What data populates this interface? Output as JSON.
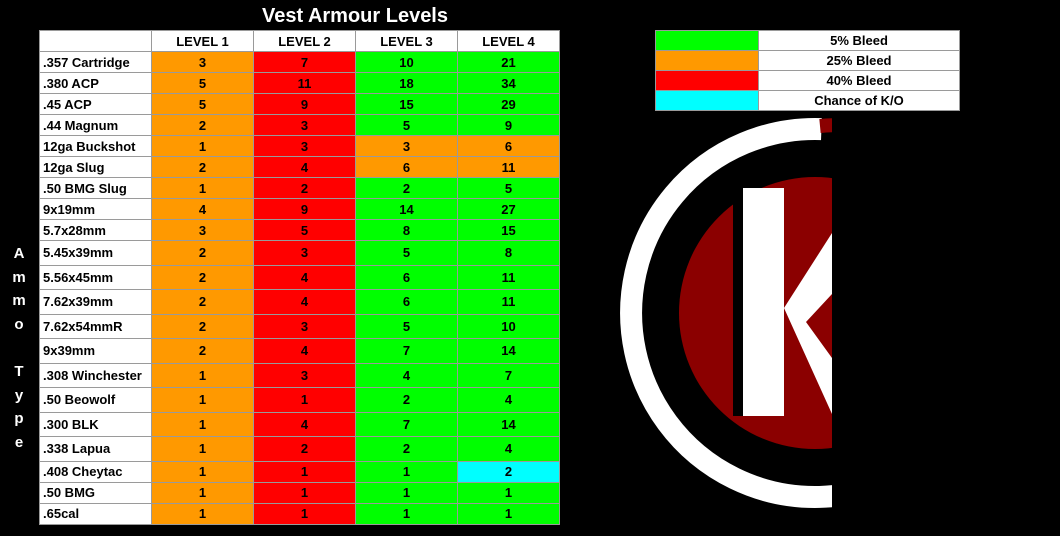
{
  "title": "Vest Armour Levels",
  "side_label": [
    "A",
    "m",
    "m",
    "o",
    "",
    "T",
    "y",
    "p",
    "e"
  ],
  "headers": [
    "",
    "LEVEL 1",
    "LEVEL 2",
    "LEVEL 3",
    "LEVEL 4"
  ],
  "colors": {
    "bleed5": "#00ff00",
    "bleed25": "#ff9900",
    "bleed40": "#ff0000",
    "ko": "#00ffff"
  },
  "legend": [
    {
      "label": "5% Bleed",
      "color": "bleed5"
    },
    {
      "label": "25% Bleed",
      "color": "bleed25"
    },
    {
      "label": "40% Bleed",
      "color": "bleed40"
    },
    {
      "label": "Chance of K/O",
      "color": "ko"
    }
  ],
  "rows": [
    {
      "ammo": ".357 Cartridge",
      "values": [
        "3",
        "7",
        "10",
        "21"
      ],
      "colors": [
        "bleed25",
        "bleed40",
        "bleed5",
        "bleed5"
      ]
    },
    {
      "ammo": ".380 ACP",
      "values": [
        "5",
        "11",
        "18",
        "34"
      ],
      "colors": [
        "bleed25",
        "bleed40",
        "bleed5",
        "bleed5"
      ]
    },
    {
      "ammo": ".45 ACP",
      "values": [
        "5",
        "9",
        "15",
        "29"
      ],
      "colors": [
        "bleed25",
        "bleed40",
        "bleed5",
        "bleed5"
      ]
    },
    {
      "ammo": ".44 Magnum",
      "values": [
        "2",
        "3",
        "5",
        "9"
      ],
      "colors": [
        "bleed25",
        "bleed40",
        "bleed5",
        "bleed5"
      ]
    },
    {
      "ammo": "12ga Buckshot",
      "values": [
        "1",
        "3",
        "3",
        "6"
      ],
      "colors": [
        "bleed25",
        "bleed40",
        "bleed25",
        "bleed25"
      ]
    },
    {
      "ammo": "12ga Slug",
      "values": [
        "2",
        "4",
        "6",
        "11"
      ],
      "colors": [
        "bleed25",
        "bleed40",
        "bleed25",
        "bleed25"
      ]
    },
    {
      "ammo": ".50 BMG Slug",
      "values": [
        "1",
        "2",
        "2",
        "5"
      ],
      "colors": [
        "bleed25",
        "bleed40",
        "bleed5",
        "bleed5"
      ]
    },
    {
      "ammo": "9x19mm",
      "values": [
        "4",
        "9",
        "14",
        "27"
      ],
      "colors": [
        "bleed25",
        "bleed40",
        "bleed5",
        "bleed5"
      ]
    },
    {
      "ammo": "5.7x28mm",
      "values": [
        "3",
        "5",
        "8",
        "15"
      ],
      "colors": [
        "bleed25",
        "bleed40",
        "bleed5",
        "bleed5"
      ]
    },
    {
      "ammo": "5.45x39mm",
      "values": [
        "2",
        "3",
        "5",
        "8"
      ],
      "colors": [
        "bleed25",
        "bleed40",
        "bleed5",
        "bleed5"
      ]
    },
    {
      "ammo": "5.56x45mm",
      "values": [
        "2",
        "4",
        "6",
        "11"
      ],
      "colors": [
        "bleed25",
        "bleed40",
        "bleed5",
        "bleed5"
      ]
    },
    {
      "ammo": "7.62x39mm",
      "values": [
        "2",
        "4",
        "6",
        "11"
      ],
      "colors": [
        "bleed25",
        "bleed40",
        "bleed5",
        "bleed5"
      ]
    },
    {
      "ammo": "7.62x54mmR",
      "values": [
        "2",
        "3",
        "5",
        "10"
      ],
      "colors": [
        "bleed25",
        "bleed40",
        "bleed5",
        "bleed5"
      ]
    },
    {
      "ammo": "9x39mm",
      "values": [
        "2",
        "4",
        "7",
        "14"
      ],
      "colors": [
        "bleed25",
        "bleed40",
        "bleed5",
        "bleed5"
      ]
    },
    {
      "ammo": ".308 Winchester",
      "values": [
        "1",
        "3",
        "4",
        "7"
      ],
      "colors": [
        "bleed25",
        "bleed40",
        "bleed5",
        "bleed5"
      ]
    },
    {
      "ammo": ".50 Beowolf",
      "values": [
        "1",
        "1",
        "2",
        "4"
      ],
      "colors": [
        "bleed25",
        "bleed40",
        "bleed5",
        "bleed5"
      ]
    },
    {
      "ammo": ".300 BLK",
      "values": [
        "1",
        "4",
        "7",
        "14"
      ],
      "colors": [
        "bleed25",
        "bleed40",
        "bleed5",
        "bleed5"
      ]
    },
    {
      "ammo": ".338 Lapua",
      "values": [
        "1",
        "2",
        "2",
        "4"
      ],
      "colors": [
        "bleed25",
        "bleed40",
        "bleed5",
        "bleed5"
      ]
    },
    {
      "ammo": ".408 Cheytac",
      "values": [
        "1",
        "1",
        "1",
        "2"
      ],
      "colors": [
        "bleed25",
        "bleed40",
        "bleed5",
        "ko"
      ]
    },
    {
      "ammo": ".50 BMG",
      "values": [
        "1",
        "1",
        "1",
        "1"
      ],
      "colors": [
        "bleed25",
        "bleed40",
        "bleed5",
        "bleed5"
      ]
    },
    {
      "ammo": ".65cal",
      "values": [
        "1",
        "1",
        "1",
        "1"
      ],
      "colors": [
        "bleed25",
        "bleed40",
        "bleed5",
        "bleed5"
      ]
    }
  ],
  "logo": {
    "letter": "K",
    "colors": {
      "ring_white": "#ffffff",
      "ring_red": "#8b0000",
      "inner_red": "#8b0000"
    }
  }
}
